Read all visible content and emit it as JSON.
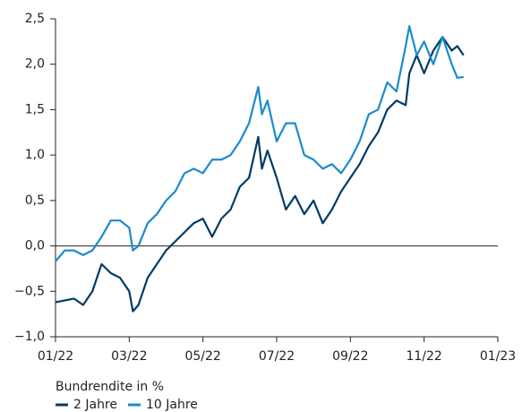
{
  "chart_data": {
    "type": "line",
    "legend_title": "Bundrendite in %",
    "xlim": [
      0,
      12
    ],
    "xticks": [
      {
        "value": 0,
        "label": "01/22"
      },
      {
        "value": 2,
        "label": "03/22"
      },
      {
        "value": 4,
        "label": "05/22"
      },
      {
        "value": 6,
        "label": "07/22"
      },
      {
        "value": 8,
        "label": "09/22"
      },
      {
        "value": 10,
        "label": "11/22"
      },
      {
        "value": 12,
        "label": "01/23"
      }
    ],
    "ylim": [
      -1.0,
      2.5
    ],
    "yticks": [
      {
        "value": 2.5,
        "label": "2,5"
      },
      {
        "value": 2.0,
        "label": "2,0"
      },
      {
        "value": 1.5,
        "label": "1,5"
      },
      {
        "value": 1.0,
        "label": "1,0"
      },
      {
        "value": 0.5,
        "label": "0,5"
      },
      {
        "value": 0.0,
        "label": "0,0"
      },
      {
        "value": -0.5,
        "label": "−0,5"
      },
      {
        "value": -1.0,
        "label": "−1,0"
      }
    ],
    "x": [
      0,
      0.25,
      0.5,
      0.75,
      1.0,
      1.25,
      1.5,
      1.75,
      2.0,
      2.1,
      2.25,
      2.5,
      2.75,
      3.0,
      3.25,
      3.5,
      3.75,
      4.0,
      4.25,
      4.5,
      4.75,
      5.0,
      5.25,
      5.5,
      5.6,
      5.75,
      6.0,
      6.25,
      6.5,
      6.75,
      7.0,
      7.25,
      7.5,
      7.75,
      8.0,
      8.25,
      8.5,
      8.75,
      9.0,
      9.25,
      9.5,
      9.6,
      9.8,
      10.0,
      10.25,
      10.5,
      10.75,
      10.9,
      11.07
    ],
    "series": [
      {
        "name": "2 Jahre",
        "color": "#003a63",
        "values": [
          -0.62,
          -0.6,
          -0.58,
          -0.65,
          -0.5,
          -0.2,
          -0.3,
          -0.35,
          -0.5,
          -0.72,
          -0.65,
          -0.35,
          -0.2,
          -0.05,
          0.05,
          0.15,
          0.25,
          0.3,
          0.1,
          0.3,
          0.4,
          0.65,
          0.75,
          1.2,
          0.85,
          1.05,
          0.75,
          0.4,
          0.55,
          0.35,
          0.5,
          0.25,
          0.4,
          0.6,
          0.75,
          0.9,
          1.1,
          1.25,
          1.5,
          1.6,
          1.55,
          1.9,
          2.1,
          1.9,
          2.15,
          2.3,
          2.15,
          2.2,
          2.1
        ]
      },
      {
        "name": "10 Jahre",
        "color": "#1b8bcc",
        "values": [
          -0.17,
          -0.05,
          -0.05,
          -0.1,
          -0.05,
          0.1,
          0.28,
          0.28,
          0.2,
          -0.05,
          0.0,
          0.25,
          0.35,
          0.5,
          0.6,
          0.8,
          0.85,
          0.8,
          0.95,
          0.95,
          1.0,
          1.15,
          1.35,
          1.75,
          1.45,
          1.6,
          1.15,
          1.35,
          1.35,
          1.0,
          0.95,
          0.85,
          0.9,
          0.8,
          0.95,
          1.15,
          1.45,
          1.5,
          1.8,
          1.7,
          2.2,
          2.42,
          2.1,
          2.25,
          2.0,
          2.3,
          2.0,
          1.85,
          1.86
        ]
      }
    ]
  }
}
